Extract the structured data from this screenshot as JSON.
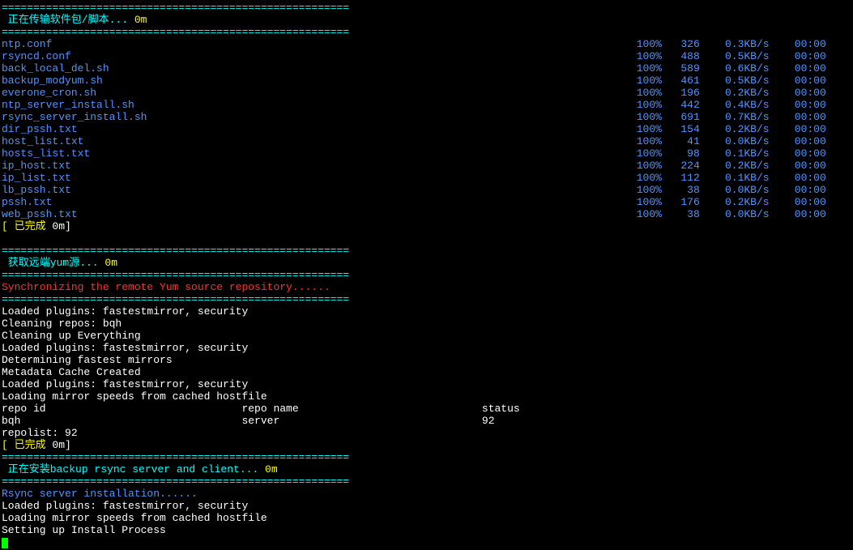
{
  "separator": "=======================================================",
  "section1": {
    "title": " 正在传输软件包/脚本...",
    "title_suffix": " 0m",
    "files": [
      {
        "name": "ntp.conf",
        "pct": "100%",
        "size": "326",
        "rate": "0.3KB/s",
        "time": "00:00"
      },
      {
        "name": "rsyncd.conf",
        "pct": "100%",
        "size": "488",
        "rate": "0.5KB/s",
        "time": "00:00"
      },
      {
        "name": "back_local_del.sh",
        "pct": "100%",
        "size": "589",
        "rate": "0.6KB/s",
        "time": "00:00"
      },
      {
        "name": "backup_modyum.sh",
        "pct": "100%",
        "size": "461",
        "rate": "0.5KB/s",
        "time": "00:00"
      },
      {
        "name": "everone_cron.sh",
        "pct": "100%",
        "size": "196",
        "rate": "0.2KB/s",
        "time": "00:00"
      },
      {
        "name": "ntp_server_install.sh",
        "pct": "100%",
        "size": "442",
        "rate": "0.4KB/s",
        "time": "00:00"
      },
      {
        "name": "rsync_server_install.sh",
        "pct": "100%",
        "size": "691",
        "rate": "0.7KB/s",
        "time": "00:00"
      },
      {
        "name": "dir_pssh.txt",
        "pct": "100%",
        "size": "154",
        "rate": "0.2KB/s",
        "time": "00:00"
      },
      {
        "name": "host_list.txt",
        "pct": "100%",
        "size": "41",
        "rate": "0.0KB/s",
        "time": "00:00"
      },
      {
        "name": "hosts_list.txt",
        "pct": "100%",
        "size": "98",
        "rate": "0.1KB/s",
        "time": "00:00"
      },
      {
        "name": "ip_host.txt",
        "pct": "100%",
        "size": "224",
        "rate": "0.2KB/s",
        "time": "00:00"
      },
      {
        "name": "ip_list.txt",
        "pct": "100%",
        "size": "112",
        "rate": "0.1KB/s",
        "time": "00:00"
      },
      {
        "name": "lb_pssh.txt",
        "pct": "100%",
        "size": "38",
        "rate": "0.0KB/s",
        "time": "00:00"
      },
      {
        "name": "pssh.txt",
        "pct": "100%",
        "size": "176",
        "rate": "0.2KB/s",
        "time": "00:00"
      },
      {
        "name": "web_pssh.txt",
        "pct": "100%",
        "size": "38",
        "rate": "0.0KB/s",
        "time": "00:00"
      }
    ],
    "done": "[ 已完成",
    "done_suffix": " 0m]"
  },
  "section2": {
    "title": " 获取远端yum源...",
    "title_suffix": " 0m",
    "sync_msg": "Synchronizing the remote Yum source repository......",
    "lines": [
      "Loaded plugins: fastestmirror, security",
      "Cleaning repos: bqh",
      "Cleaning up Everything",
      "Loaded plugins: fastestmirror, security",
      "Determining fastest mirrors",
      "Metadata Cache Created",
      "Loaded plugins: fastestmirror, security",
      "Loading mirror speeds from cached hostfile"
    ],
    "repo_header": {
      "id": "repo id",
      "name": "repo name",
      "status": "status"
    },
    "repo_row": {
      "id": "bqh",
      "name": "server",
      "status": "92"
    },
    "repolist": "repolist: 92",
    "done": "[ 已完成",
    "done_suffix": " 0m]"
  },
  "section3": {
    "title": " 正在安装backup rsync server and client...",
    "title_suffix": " 0m",
    "install_msg": "Rsync server installation......",
    "lines": [
      "Loaded plugins: fastestmirror, security",
      "Loading mirror speeds from cached hostfile",
      "Setting up Install Process"
    ]
  }
}
